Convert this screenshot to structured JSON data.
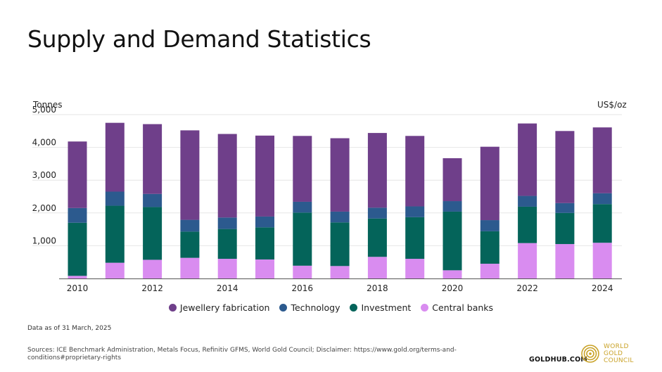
{
  "page": {
    "title": "Supply and Demand Statistics",
    "note": "Data as of 31 March, 2025",
    "sources": "Sources: ICE Benchmark Administration, Metals Focus, Refinitiv GFMS, World Gold Council; Disclaimer: https://www.gold.org/terms-and-conditions#proprietary-rights",
    "goldhub": "GOLDHUB.COM",
    "wgc_lines": [
      "WORLD",
      "GOLD",
      "COUNCIL"
    ],
    "logo_color": "#c9a227"
  },
  "chart_data": {
    "type": "bar",
    "stacked": true,
    "left_axis_label": "Tonnes",
    "right_axis_label": "US$/oz",
    "ylim": [
      0,
      5000
    ],
    "yticks": [
      0,
      1000,
      2000,
      3000,
      4000,
      5000
    ],
    "ytick_labels": [
      "",
      "1,000",
      "2,000",
      "3,000",
      "4,000",
      "5,000"
    ],
    "categories": [
      "2010",
      "2011",
      "2012",
      "2013",
      "2014",
      "2015",
      "2016",
      "2017",
      "2018",
      "2019",
      "2020",
      "2021",
      "2022",
      "2023",
      "2024"
    ],
    "xtick_labels": [
      "2010",
      "",
      "2012",
      "",
      "2014",
      "",
      "2016",
      "",
      "2018",
      "",
      "2020",
      "",
      "2022",
      "",
      "2024"
    ],
    "grid": true,
    "legend_position": "bottom",
    "series": [
      {
        "name": "Central banks",
        "color": "#d98cf0",
        "values": [
          80,
          480,
          570,
          630,
          600,
          580,
          390,
          380,
          660,
          600,
          250,
          450,
          1080,
          1050,
          1090
        ]
      },
      {
        "name": "Investment",
        "color": "#04645a",
        "values": [
          1620,
          1740,
          1610,
          800,
          910,
          980,
          1620,
          1330,
          1170,
          1270,
          1790,
          990,
          1110,
          950,
          1180
        ]
      },
      {
        "name": "Technology",
        "color": "#2c5a8e",
        "values": [
          450,
          430,
          400,
          360,
          350,
          330,
          330,
          330,
          330,
          330,
          320,
          340,
          330,
          300,
          330
        ]
      },
      {
        "name": "Jewellery fabrication",
        "color": "#6f3f8a",
        "values": [
          2030,
          2100,
          2130,
          2730,
          2550,
          2470,
          2010,
          2240,
          2280,
          2150,
          1310,
          2240,
          2210,
          2200,
          2010
        ]
      }
    ],
    "legend_order": [
      "Jewellery fabrication",
      "Technology",
      "Investment",
      "Central banks"
    ]
  }
}
